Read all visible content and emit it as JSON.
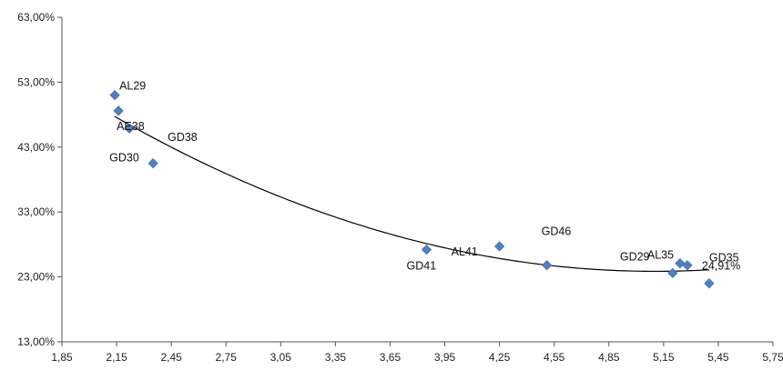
{
  "chart_data": {
    "type": "scatter",
    "title": "",
    "xlabel": "",
    "ylabel": "",
    "xlim": [
      1.85,
      5.75
    ],
    "ylim": [
      13,
      63
    ],
    "x_ticks": [
      "1,85",
      "2,15",
      "2,45",
      "2,75",
      "3,05",
      "3,35",
      "3,65",
      "3,95",
      "4,25",
      "4,55",
      "4,85",
      "5,15",
      "5,45",
      "5,75"
    ],
    "y_ticks": [
      "13,00%",
      "23,00%",
      "33,00%",
      "43,00%",
      "53,00%",
      "63,00%"
    ],
    "grid": false,
    "legend": "none",
    "marker_color": "#4F81BD",
    "trendline": {
      "type": "polynomial-2",
      "color": "#000000"
    },
    "points": [
      {
        "label": "AL29",
        "x": 2.14,
        "y": 51.0
      },
      {
        "label": "",
        "x": 2.16,
        "y": 48.6
      },
      {
        "label": "AE38",
        "x": 2.22,
        "y": 45.9
      },
      {
        "label": "GD38",
        "x": 2.22,
        "y": 45.9
      },
      {
        "label": "GD30",
        "x": 2.35,
        "y": 40.5
      },
      {
        "label": "GD41",
        "x": 3.85,
        "y": 27.2
      },
      {
        "label": "AL41",
        "x": 4.25,
        "y": 27.7
      },
      {
        "label": "GD46",
        "x": 4.51,
        "y": 24.8
      },
      {
        "label": "GD29",
        "x": 5.2,
        "y": 23.6
      },
      {
        "label": "AL35",
        "x": 5.24,
        "y": 25.1
      },
      {
        "label": "GD35",
        "x": 5.28,
        "y": 24.8
      },
      {
        "label": "24,91%",
        "x": 5.4,
        "y": 22.0
      }
    ]
  }
}
